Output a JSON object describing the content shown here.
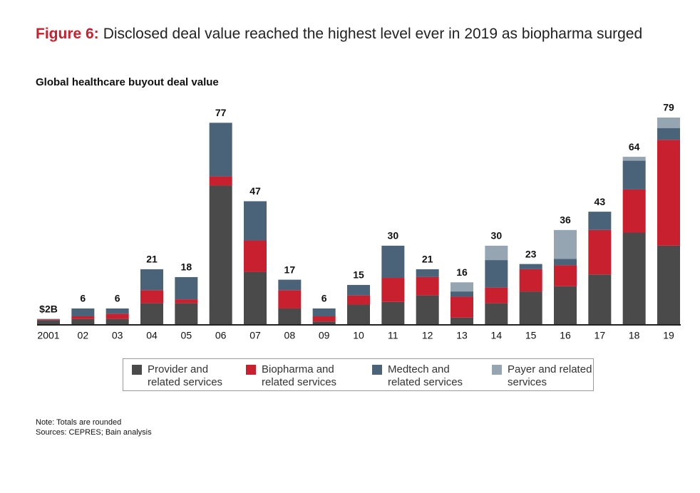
{
  "chart_data": {
    "type": "stacked_bar",
    "figure_label": "Figure 6:",
    "title": "Disclosed deal value reached the highest level ever in 2019 as biopharma surged",
    "subtitle": "Global healthcare buyout deal value",
    "categories": [
      "2001",
      "02",
      "03",
      "04",
      "05",
      "06",
      "07",
      "08",
      "09",
      "10",
      "11",
      "12",
      "13",
      "14",
      "15",
      "16",
      "17",
      "18",
      "19"
    ],
    "series": [
      {
        "name": "Provider and related services",
        "color": "#4a4a4a",
        "values": [
          1.4,
          2,
          2,
          8,
          8,
          53,
          20,
          6,
          1,
          7.5,
          8.5,
          11,
          2.5,
          8,
          12.5,
          14.5,
          19,
          35,
          30
        ]
      },
      {
        "name": "Biopharma and related services",
        "color": "#c8202f",
        "values": [
          0.3,
          1,
          2,
          5,
          1.5,
          3.5,
          12,
          7,
          2,
          3.5,
          9.2,
          7,
          8,
          6,
          8.5,
          8,
          17,
          16.5,
          40.5
        ]
      },
      {
        "name": "Medtech and related services",
        "color": "#4b6378",
        "values": [
          0.3,
          3,
          2,
          8,
          8.5,
          20.5,
          15,
          4,
          3,
          4,
          12.3,
          3,
          2,
          10.5,
          2,
          2.5,
          7,
          11,
          4.5
        ]
      },
      {
        "name": "Payer and related services",
        "color": "#95a5b2",
        "values": [
          0,
          0,
          0,
          0,
          0,
          0,
          0,
          0,
          0,
          0,
          0,
          0,
          3.5,
          5.5,
          0,
          11,
          0,
          1.5,
          4
        ]
      }
    ],
    "totals": [
      {
        "value": 2,
        "label": "$2B"
      },
      6,
      6,
      21,
      18,
      77,
      47,
      17,
      6,
      15,
      30,
      21,
      16,
      30,
      23,
      36,
      43,
      64,
      79
    ],
    "note": "Note: Totals are rounded",
    "sources": "Sources: CEPRES; Bain analysis"
  }
}
